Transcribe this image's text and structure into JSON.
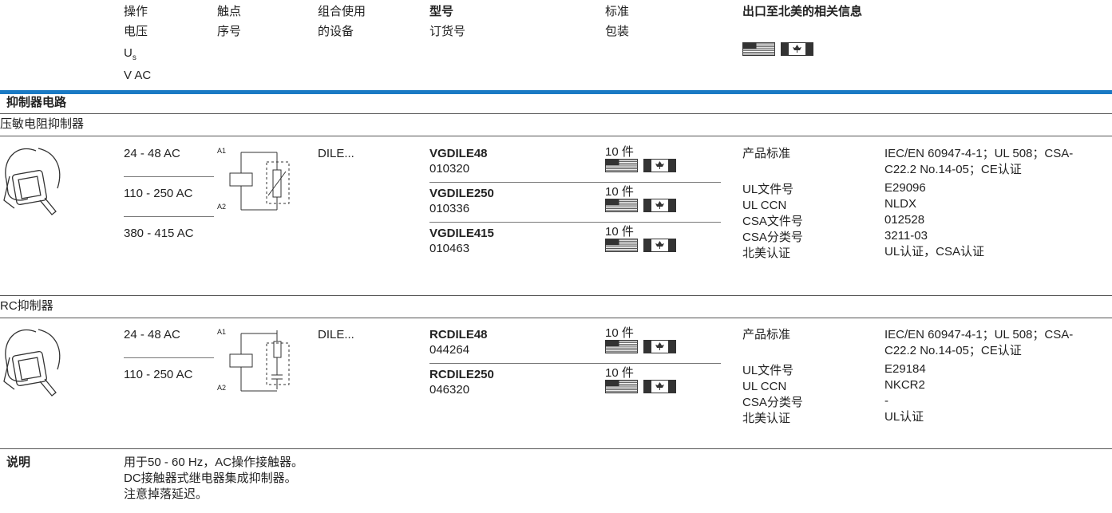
{
  "header": {
    "voltage": [
      "操作",
      "电压"
    ],
    "voltage_symbol": "U",
    "voltage_symbol_sub": "s",
    "voltage_unit": "V AC",
    "contact": [
      "触点",
      "序号"
    ],
    "combination": [
      "组合使用",
      "的设备"
    ],
    "type": "型号",
    "order": "订货号",
    "packaging": [
      "标准",
      "包装"
    ],
    "export": "出口至北美的相关信息"
  },
  "group_title": "抑制器电路",
  "sections": [
    {
      "name": "压敏电阻抑制器",
      "terminals": [
        "A1",
        "A2"
      ],
      "voltages": [
        "24 - 48 AC",
        "110 - 250 AC",
        "380 - 415 AC"
      ],
      "device": "DILE...",
      "products": [
        {
          "type": "VGDILE48",
          "order": "010320",
          "packaging": "10 件"
        },
        {
          "type": "VGDILE250",
          "order": "010336",
          "packaging": "10 件"
        },
        {
          "type": "VGDILE415",
          "order": "010463",
          "packaging": "10 件"
        }
      ],
      "info_labels": [
        "产品标准",
        "UL文件号",
        "UL CCN",
        "CSA文件号",
        "CSA分类号",
        "北美认证"
      ],
      "info_values": [
        "IEC/EN 60947-4-1；UL 508；CSA-C22.2 No.14-05；CE认证",
        "E29096",
        "NLDX",
        "012528",
        "3211-03",
        "UL认证，CSA认证"
      ]
    },
    {
      "name": "RC抑制器",
      "terminals": [
        "A1",
        "A2"
      ],
      "voltages": [
        "24 - 48 AC",
        "110 - 250 AC"
      ],
      "device": "DILE...",
      "products": [
        {
          "type": "RCDILE48",
          "order": "044264",
          "packaging": "10 件"
        },
        {
          "type": "RCDILE250",
          "order": "046320",
          "packaging": "10 件"
        }
      ],
      "info_labels": [
        "产品标准",
        "UL文件号",
        "UL CCN",
        "CSA分类号",
        "北美认证"
      ],
      "info_values": [
        "IEC/EN 60947-4-1；UL 508；CSA-C22.2 No.14-05；CE认证",
        "E29184",
        "NKCR2",
        "-",
        "UL认证"
      ]
    }
  ],
  "notes": {
    "label": "说明",
    "lines": [
      "用于50 - 60 Hz，AC操作接触器。",
      "DC接触器式继电器集成抑制器。",
      "注意掉落延迟。"
    ]
  }
}
